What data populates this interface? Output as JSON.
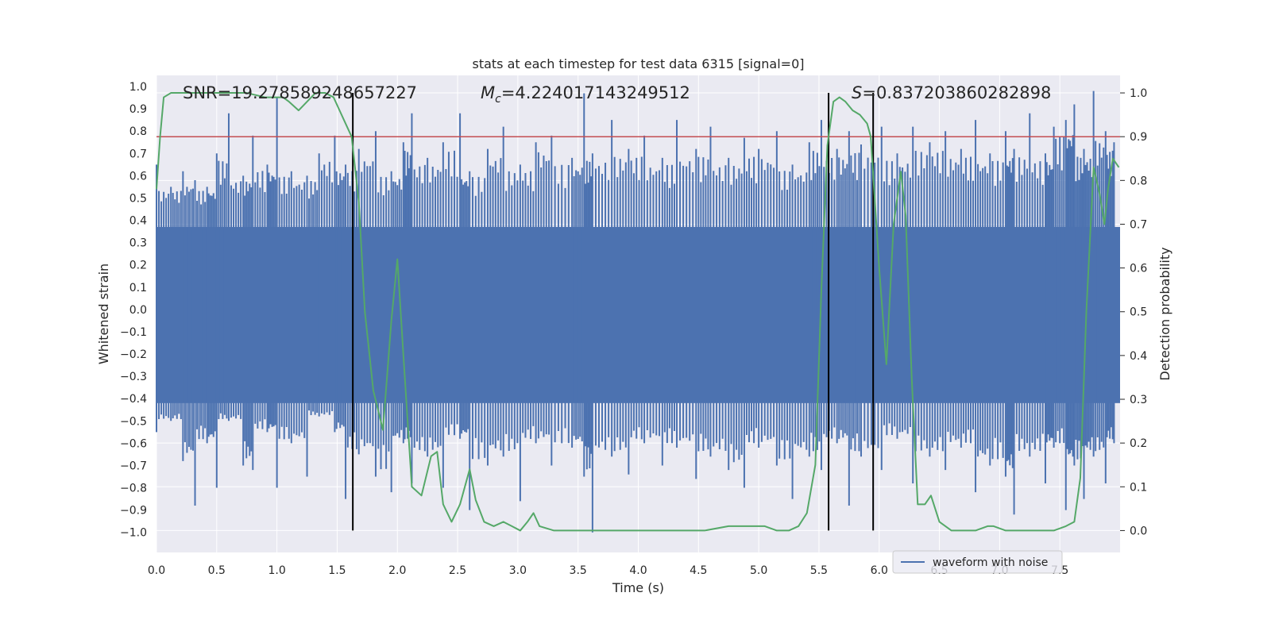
{
  "chart_data": {
    "type": "line",
    "title": "stats at each timestep for test data 6315 [signal=0]",
    "xlabel": "Time (s)",
    "ylabel_left": "Whitened strain",
    "ylabel_right": "Detection probability",
    "xlim": [
      0.0,
      8.0
    ],
    "ylim_left": [
      -1.09,
      1.05
    ],
    "ylim_right": [
      -0.05,
      1.04
    ],
    "x_ticks": [
      0.0,
      0.5,
      1.0,
      1.5,
      2.0,
      2.5,
      3.0,
      3.5,
      4.0,
      4.5,
      5.0,
      5.5,
      6.0,
      6.5,
      7.0,
      7.5
    ],
    "x_tick_labels": [
      "0.0",
      "0.5",
      "1.0",
      "1.5",
      "2.0",
      "2.5",
      "3.0",
      "3.5",
      "4.0",
      "4.5",
      "5.0",
      "5.5",
      "6.0",
      "6.5",
      "7.0",
      "7.5"
    ],
    "y_left_ticks": [
      1.0,
      0.9,
      0.8,
      0.7,
      0.6,
      0.5,
      0.4,
      0.3,
      0.2,
      0.1,
      0.0,
      -0.1,
      -0.2,
      -0.3,
      -0.4,
      -0.5,
      -0.6,
      -0.7,
      -0.8,
      -0.9,
      -1.0
    ],
    "y_left_tick_labels": [
      "1.0",
      "0.9",
      "0.8",
      "0.7",
      "0.6",
      "0.5",
      "0.4",
      "0.3",
      "0.2",
      "0.1",
      "0.0",
      "−0.1",
      "−0.2",
      "−0.3",
      "−0.4",
      "−0.5",
      "−0.6",
      "−0.7",
      "−0.8",
      "−0.9",
      "−1.0"
    ],
    "y_right_ticks": [
      0.0,
      0.1,
      0.2,
      0.3,
      0.4,
      0.5,
      0.6,
      0.7,
      0.8,
      0.9,
      1.0
    ],
    "y_right_tick_labels": [
      "0.0",
      "0.1",
      "0.2",
      "0.3",
      "0.4",
      "0.5",
      "0.6",
      "0.7",
      "0.8",
      "0.9",
      "1.0"
    ],
    "grid": true,
    "legend_position": "lower-right",
    "legend": [
      {
        "name": "waveform with noise",
        "color": "#4c72b0"
      }
    ],
    "annotations": {
      "snr": "SNR=19.278589248657227",
      "mc_symbol": "M",
      "mc_subscript": "c",
      "mc_value": "=4.224017143249512",
      "s_symbol": "S",
      "s_value": "=0.837203860282898"
    },
    "threshold_line": {
      "axis": "right",
      "value": 0.9,
      "color": "#c44e52"
    },
    "vertical_lines": [
      1.63,
      5.58,
      5.95
    ],
    "waveform": {
      "color": "#4c72b0",
      "band_upper": 0.37,
      "band_lower": -0.42,
      "spikes": [
        {
          "x": 0.0,
          "lo": -0.55,
          "hi": 0.65
        },
        {
          "x": 0.12,
          "lo": -0.5,
          "hi": 0.55
        },
        {
          "x": 0.22,
          "lo": -0.68,
          "hi": 0.62
        },
        {
          "x": 0.32,
          "lo": -0.88,
          "hi": 0.58
        },
        {
          "x": 0.42,
          "lo": -0.6,
          "hi": 0.55
        },
        {
          "x": 0.5,
          "lo": -0.8,
          "hi": 0.7
        },
        {
          "x": 0.6,
          "lo": -0.5,
          "hi": 0.88
        },
        {
          "x": 0.72,
          "lo": -0.7,
          "hi": 0.6
        },
        {
          "x": 0.8,
          "lo": -0.72,
          "hi": 0.78
        },
        {
          "x": 0.92,
          "lo": -0.55,
          "hi": 0.65
        },
        {
          "x": 1.0,
          "lo": -0.8,
          "hi": 0.95
        },
        {
          "x": 1.12,
          "lo": -0.6,
          "hi": 0.62
        },
        {
          "x": 1.25,
          "lo": -0.75,
          "hi": 0.6
        },
        {
          "x": 1.35,
          "lo": -0.48,
          "hi": 0.7
        },
        {
          "x": 1.48,
          "lo": -0.55,
          "hi": 0.78
        },
        {
          "x": 1.57,
          "lo": -0.85,
          "hi": 0.65
        },
        {
          "x": 1.68,
          "lo": -0.65,
          "hi": 0.72
        },
        {
          "x": 1.82,
          "lo": -0.75,
          "hi": 0.8
        },
        {
          "x": 1.95,
          "lo": -0.82,
          "hi": 0.62
        },
        {
          "x": 2.05,
          "lo": -0.6,
          "hi": 0.75
        },
        {
          "x": 2.12,
          "lo": -0.78,
          "hi": 0.88
        },
        {
          "x": 2.25,
          "lo": -0.66,
          "hi": 0.68
        },
        {
          "x": 2.38,
          "lo": -0.8,
          "hi": 0.75
        },
        {
          "x": 2.52,
          "lo": -0.58,
          "hi": 0.88
        },
        {
          "x": 2.6,
          "lo": -0.9,
          "hi": 0.62
        },
        {
          "x": 2.75,
          "lo": -0.7,
          "hi": 0.72
        },
        {
          "x": 2.88,
          "lo": -0.66,
          "hi": 0.82
        },
        {
          "x": 3.02,
          "lo": -0.86,
          "hi": 0.65
        },
        {
          "x": 3.15,
          "lo": -0.6,
          "hi": 0.75
        },
        {
          "x": 3.28,
          "lo": -0.7,
          "hi": 0.78
        },
        {
          "x": 3.45,
          "lo": -0.62,
          "hi": 0.68
        },
        {
          "x": 3.55,
          "lo": -0.75,
          "hi": 0.97
        },
        {
          "x": 3.62,
          "lo": -1.0,
          "hi": 0.7
        },
        {
          "x": 3.78,
          "lo": -0.66,
          "hi": 0.85
        },
        {
          "x": 3.92,
          "lo": -0.74,
          "hi": 0.72
        },
        {
          "x": 4.05,
          "lo": -0.6,
          "hi": 0.78
        },
        {
          "x": 4.2,
          "lo": -0.7,
          "hi": 0.68
        },
        {
          "x": 4.32,
          "lo": -0.62,
          "hi": 0.85
        },
        {
          "x": 4.48,
          "lo": -0.76,
          "hi": 0.72
        },
        {
          "x": 4.6,
          "lo": -0.66,
          "hi": 0.82
        },
        {
          "x": 4.75,
          "lo": -0.72,
          "hi": 0.68
        },
        {
          "x": 4.88,
          "lo": -0.8,
          "hi": 0.77
        },
        {
          "x": 5.0,
          "lo": -0.62,
          "hi": 0.72
        },
        {
          "x": 5.15,
          "lo": -0.7,
          "hi": 0.8
        },
        {
          "x": 5.28,
          "lo": -0.85,
          "hi": 0.65
        },
        {
          "x": 5.42,
          "lo": -0.66,
          "hi": 0.75
        },
        {
          "x": 5.52,
          "lo": -0.72,
          "hi": 0.85
        },
        {
          "x": 5.65,
          "lo": -0.6,
          "hi": 0.72
        },
        {
          "x": 5.75,
          "lo": -0.88,
          "hi": 0.8
        },
        {
          "x": 5.85,
          "lo": -0.66,
          "hi": 0.74
        },
        {
          "x": 6.02,
          "lo": -0.72,
          "hi": 0.82
        },
        {
          "x": 6.15,
          "lo": -0.58,
          "hi": 0.7
        },
        {
          "x": 6.28,
          "lo": -0.78,
          "hi": 0.82
        },
        {
          "x": 6.42,
          "lo": -0.66,
          "hi": 0.75
        },
        {
          "x": 6.55,
          "lo": -0.72,
          "hi": 0.8
        },
        {
          "x": 6.68,
          "lo": -0.62,
          "hi": 0.72
        },
        {
          "x": 6.8,
          "lo": -0.82,
          "hi": 0.85
        },
        {
          "x": 6.92,
          "lo": -0.7,
          "hi": 0.7
        },
        {
          "x": 7.05,
          "lo": -0.75,
          "hi": 0.8
        },
        {
          "x": 7.12,
          "lo": -0.92,
          "hi": 0.72
        },
        {
          "x": 7.25,
          "lo": -0.66,
          "hi": 0.88
        },
        {
          "x": 7.38,
          "lo": -0.78,
          "hi": 0.7
        },
        {
          "x": 7.45,
          "lo": -0.62,
          "hi": 0.82
        },
        {
          "x": 7.55,
          "lo": -0.9,
          "hi": 0.85
        },
        {
          "x": 7.62,
          "lo": -0.7,
          "hi": 0.92
        },
        {
          "x": 7.7,
          "lo": -0.85,
          "hi": 0.72
        },
        {
          "x": 7.78,
          "lo": -0.66,
          "hi": 0.98
        },
        {
          "x": 7.88,
          "lo": -0.78,
          "hi": 0.8
        },
        {
          "x": 7.95,
          "lo": -0.6,
          "hi": 0.75
        }
      ]
    },
    "probability": {
      "color": "#55a868",
      "x": [
        0.0,
        0.03,
        0.06,
        0.12,
        0.25,
        0.5,
        0.75,
        0.9,
        1.0,
        1.05,
        1.1,
        1.18,
        1.25,
        1.32,
        1.4,
        1.47,
        1.52,
        1.57,
        1.62,
        1.68,
        1.73,
        1.8,
        1.88,
        1.95,
        2.0,
        2.05,
        2.12,
        2.2,
        2.28,
        2.33,
        2.38,
        2.45,
        2.52,
        2.6,
        2.65,
        2.72,
        2.8,
        2.88,
        2.95,
        3.02,
        3.08,
        3.13,
        3.18,
        3.3,
        3.5,
        3.7,
        3.9,
        4.1,
        4.3,
        4.55,
        4.75,
        4.85,
        4.95,
        5.0,
        5.05,
        5.15,
        5.25,
        5.33,
        5.4,
        5.47,
        5.52,
        5.57,
        5.62,
        5.67,
        5.72,
        5.78,
        5.84,
        5.9,
        5.93,
        6.0,
        6.06,
        6.12,
        6.18,
        6.22,
        6.27,
        6.32,
        6.38,
        6.43,
        6.5,
        6.6,
        6.8,
        6.9,
        6.95,
        7.05,
        7.25,
        7.45,
        7.55,
        7.62,
        7.67,
        7.72,
        7.78,
        7.83,
        7.87,
        7.9,
        7.94,
        7.99
      ],
      "y": [
        0.78,
        0.9,
        0.99,
        1.0,
        1.0,
        1.0,
        1.0,
        0.99,
        0.99,
        0.99,
        0.98,
        0.96,
        0.98,
        1.0,
        1.0,
        0.99,
        0.96,
        0.93,
        0.9,
        0.75,
        0.5,
        0.32,
        0.23,
        0.48,
        0.62,
        0.4,
        0.1,
        0.08,
        0.17,
        0.18,
        0.06,
        0.02,
        0.06,
        0.14,
        0.07,
        0.02,
        0.01,
        0.02,
        0.01,
        0.0,
        0.02,
        0.04,
        0.01,
        0.0,
        0.0,
        0.0,
        0.0,
        0.0,
        0.0,
        0.0,
        0.01,
        0.01,
        0.01,
        0.01,
        0.01,
        0.0,
        0.0,
        0.01,
        0.04,
        0.15,
        0.55,
        0.88,
        0.98,
        0.99,
        0.98,
        0.96,
        0.95,
        0.93,
        0.9,
        0.6,
        0.38,
        0.7,
        0.82,
        0.72,
        0.35,
        0.06,
        0.06,
        0.08,
        0.02,
        0.0,
        0.0,
        0.01,
        0.01,
        0.0,
        0.0,
        0.0,
        0.01,
        0.02,
        0.12,
        0.5,
        0.83,
        0.77,
        0.7,
        0.78,
        0.85,
        0.83
      ]
    }
  }
}
